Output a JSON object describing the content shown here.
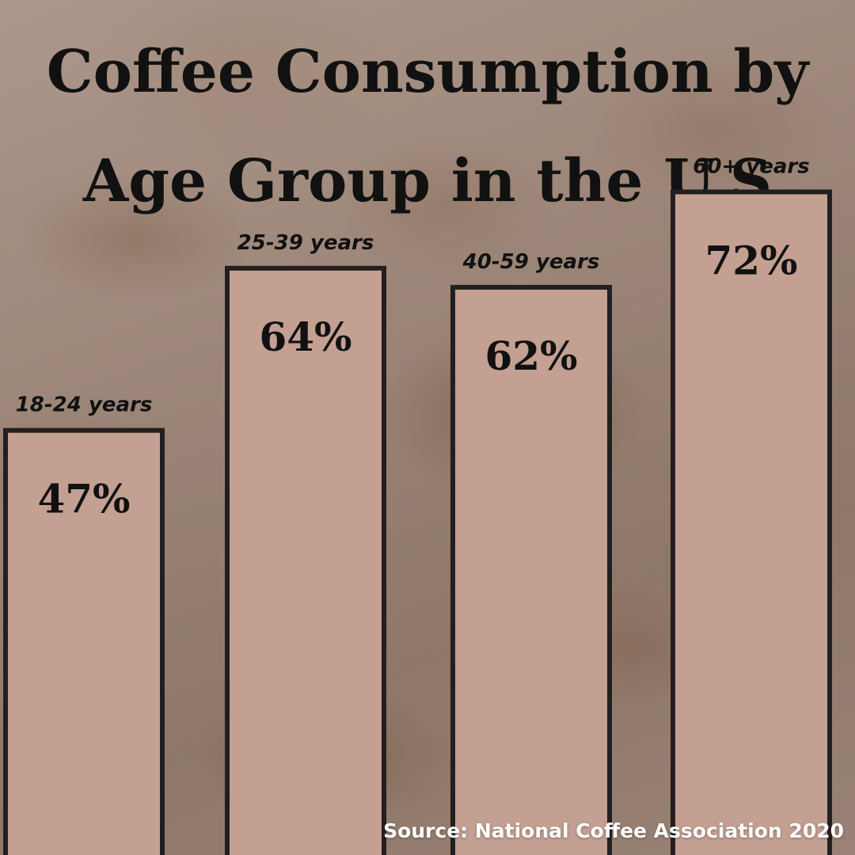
{
  "title_lines": [
    "Coffee Consumption by",
    "Age Group in the U.S"
  ],
  "source": "Source: National Coffee Association 2020",
  "colors": {
    "bar_fill": "#c4a092",
    "bar_stroke": "#231f20",
    "text": "#111111",
    "source_text": "#ffffff"
  },
  "chart_data": {
    "type": "bar",
    "title": "Coffee Consumption by Age Group in the U.S",
    "categories": [
      "18-24 years",
      "25-39 years",
      "40-59 years",
      "60+ years"
    ],
    "values": [
      47,
      64,
      62,
      72
    ],
    "value_labels": [
      "47%",
      "64%",
      "62%",
      "72%"
    ],
    "xlabel": "",
    "ylabel": "",
    "grid": false,
    "legend": "none"
  }
}
